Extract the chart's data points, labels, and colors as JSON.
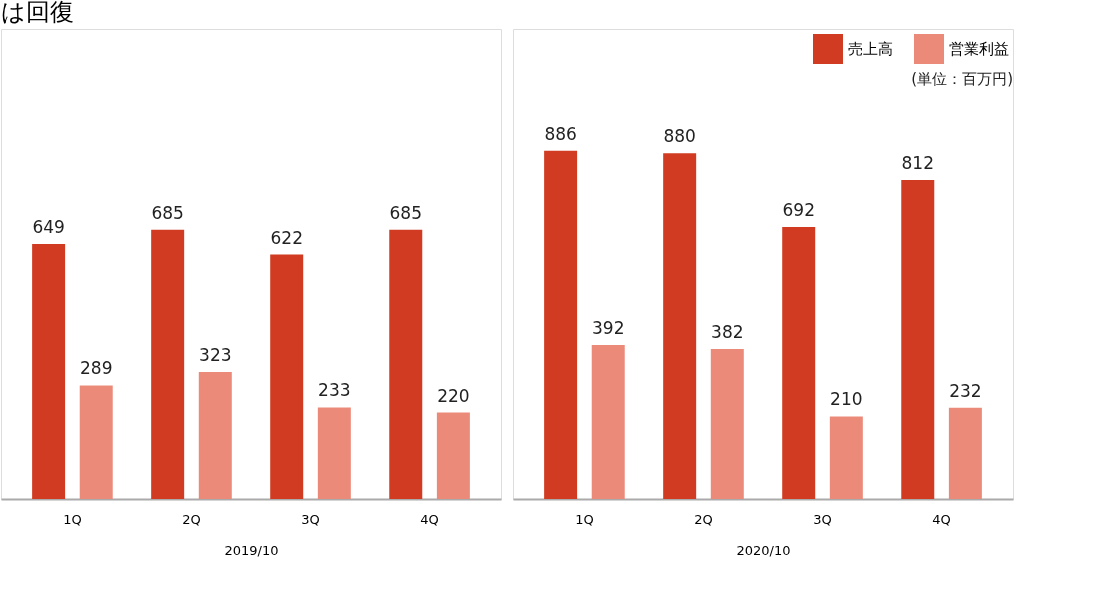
{
  "chart_data": [
    {
      "type": "bar",
      "title": "は回復",
      "xlabel": "2019/10",
      "categories": [
        "1Q",
        "2Q",
        "3Q",
        "4Q"
      ],
      "series": [
        {
          "color": "#d03b21",
          "values": [
            649,
            685,
            622,
            685
          ]
        },
        {
          "color": "#eb8a78",
          "values": [
            289,
            323,
            233,
            220
          ]
        }
      ],
      "data_labels": true,
      "tick_labels": "x",
      "grid": false,
      "legend": false
    },
    {
      "type": "bar",
      "xlabel": "2020/10",
      "categories": [
        "1Q",
        "2Q",
        "3Q",
        "4Q"
      ],
      "series": [
        {
          "name": "売上高",
          "color": "#d03b21",
          "values": [
            886,
            880,
            692,
            812
          ]
        },
        {
          "name": "営業利益",
          "color": "#eb8a78",
          "values": [
            392,
            382,
            210,
            232
          ]
        }
      ],
      "data_labels": true,
      "tick_labels": "x",
      "grid": false,
      "legend": "top right",
      "annotations": [
        "(単位：百万円)"
      ]
    }
  ]
}
